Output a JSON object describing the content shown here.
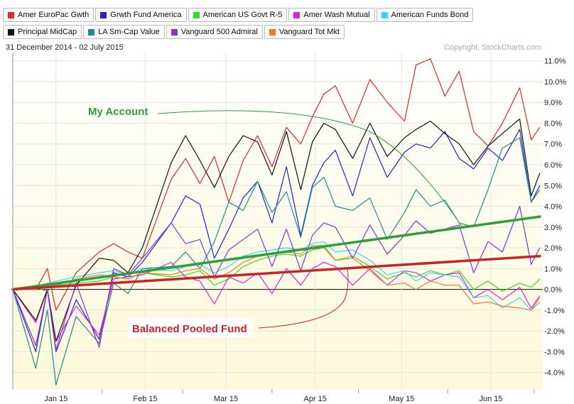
{
  "header": {
    "date_range": "31 December 2014 - 02 July 2015",
    "copyright": "Copyright, StockCharts.com"
  },
  "colors": {
    "background_top": "#ffffff",
    "background_bottom": "#fdf9d9",
    "grid": "#e4e4e4"
  },
  "chart_data": {
    "type": "line",
    "x_tick_labels": [
      "Jan 15",
      "Feb 15",
      "Mar 15",
      "Apr 15",
      "May 15",
      "Jun 15"
    ],
    "x_tick_days": [
      15,
      46,
      74,
      105,
      135,
      166
    ],
    "x_range_days": [
      0,
      184
    ],
    "ylim": [
      -4.8,
      11.4
    ],
    "y_ticks": [
      "11.0%",
      "10.0%",
      "9.0%",
      "8.0%",
      "7.0%",
      "6.0%",
      "5.0%",
      "4.0%",
      "3.0%",
      "2.0%",
      "1.0%",
      "0.0%",
      "-1.0%",
      "-2.0%",
      "-3.0%",
      "-4.0%"
    ],
    "y_tick_values": [
      11,
      10,
      9,
      8,
      7,
      6,
      5,
      4,
      3,
      2,
      1,
      0,
      -1,
      -2,
      -3,
      -4
    ],
    "grid": true,
    "legend_position": "top",
    "series": [
      {
        "name": "Amer EuroPac Gwth",
        "color": "#d62b2b",
        "x": [
          0,
          8,
          12,
          15,
          22,
          30,
          35,
          40,
          45,
          55,
          60,
          65,
          70,
          75,
          80,
          85,
          90,
          95,
          100,
          104,
          108,
          112,
          118,
          124,
          130,
          136,
          140,
          145,
          150,
          155,
          160,
          165,
          170,
          176,
          180,
          183
        ],
        "y": [
          0,
          0,
          1,
          -1,
          0.8,
          1.8,
          2.2,
          1.8,
          1.5,
          5.3,
          6.3,
          5.1,
          6.4,
          4.2,
          6.2,
          7.4,
          5.9,
          7.8,
          7.0,
          8.3,
          9.4,
          9.8,
          8.0,
          10.1,
          9.0,
          8.1,
          10.8,
          11.1,
          9.3,
          10.5,
          7.6,
          6.9,
          8.0,
          9.7,
          7.2,
          7.8
        ]
      },
      {
        "name": "Grwth Fund America",
        "color": "#2a1ec4",
        "x": [
          0,
          8,
          12,
          15,
          22,
          30,
          35,
          40,
          45,
          55,
          60,
          65,
          70,
          75,
          80,
          85,
          90,
          95,
          100,
          104,
          108,
          112,
          118,
          124,
          130,
          136,
          140,
          145,
          150,
          155,
          160,
          165,
          170,
          176,
          180,
          183
        ],
        "y": [
          0,
          -3.0,
          0,
          -3.0,
          -0.5,
          -2.4,
          0.8,
          0.6,
          1.3,
          3.2,
          4.5,
          4.1,
          1.5,
          2.9,
          4.4,
          5.2,
          3.2,
          5.9,
          2.6,
          5.0,
          6.1,
          6.7,
          4.5,
          7.3,
          5.4,
          6.6,
          7.0,
          6.8,
          7.6,
          6.3,
          5.8,
          6.8,
          6.2,
          7.7,
          4.2,
          5.0
        ]
      },
      {
        "name": "American US Govt R-5",
        "color": "#33dd22",
        "x": [
          0,
          8,
          12,
          15,
          22,
          30,
          35,
          40,
          45,
          55,
          60,
          65,
          70,
          75,
          80,
          85,
          90,
          95,
          100,
          104,
          108,
          112,
          118,
          124,
          130,
          136,
          140,
          145,
          150,
          155,
          160,
          165,
          170,
          176,
          180,
          183
        ],
        "y": [
          0,
          0.1,
          -0.1,
          0.2,
          0.3,
          0.4,
          0.6,
          0.5,
          0.8,
          0.6,
          0.7,
          0.9,
          0.2,
          0.5,
          1.1,
          1.4,
          1.6,
          1.7,
          1.6,
          1.9,
          2.0,
          1.4,
          1.6,
          1.1,
          0.5,
          0.8,
          0.6,
          0.9,
          0.7,
          0.9,
          0.0,
          0.4,
          -0.1,
          0.3,
          0.1,
          0.5
        ]
      },
      {
        "name": "Amer Wash Mutual",
        "color": "#dd22dd",
        "x": [
          0,
          8,
          12,
          15,
          22,
          30,
          35,
          40,
          45,
          55,
          60,
          65,
          70,
          75,
          80,
          85,
          90,
          95,
          100,
          104,
          108,
          112,
          118,
          124,
          130,
          136,
          140,
          145,
          150,
          155,
          160,
          165,
          170,
          176,
          180,
          183
        ],
        "y": [
          0,
          -1.6,
          0,
          -2.5,
          -0.8,
          -2.2,
          0.5,
          0.6,
          0.7,
          1.3,
          0.6,
          0.4,
          -0.7,
          0.6,
          0.3,
          0.8,
          -0.2,
          1.0,
          0.2,
          1.0,
          1.3,
          1.1,
          0.2,
          1.0,
          0.2,
          0.9,
          0.8,
          0.4,
          0.7,
          0.8,
          -0.4,
          0.0,
          -0.5,
          0.1,
          -0.9,
          -0.3
        ]
      },
      {
        "name": "American Funds Bond",
        "color": "#33d7ef",
        "x": [
          0,
          8,
          12,
          15,
          22,
          30,
          35,
          40,
          45,
          55,
          60,
          65,
          70,
          75,
          80,
          85,
          90,
          95,
          100,
          104,
          108,
          112,
          118,
          124,
          130,
          136,
          140,
          145,
          150,
          155,
          160,
          165,
          170,
          176,
          180,
          183
        ],
        "y": [
          0,
          0.1,
          0.3,
          0.4,
          0.6,
          0.8,
          0.9,
          0.7,
          1.0,
          0.9,
          1.1,
          1.2,
          0.8,
          1.1,
          1.6,
          1.8,
          1.9,
          2.0,
          1.9,
          2.2,
          2.3,
          1.8,
          1.9,
          1.4,
          0.7,
          0.9,
          0.4,
          0.8,
          0.7,
          0.6,
          -0.4,
          -0.3,
          -0.9,
          -0.4,
          -1.0,
          -0.6
        ]
      },
      {
        "name": "Principal MidCap",
        "color": "#111111",
        "x": [
          0,
          8,
          12,
          15,
          22,
          30,
          35,
          40,
          45,
          55,
          60,
          65,
          70,
          75,
          80,
          85,
          90,
          95,
          100,
          104,
          108,
          112,
          118,
          124,
          130,
          136,
          140,
          145,
          150,
          155,
          160,
          165,
          170,
          176,
          180,
          183
        ],
        "y": [
          0,
          -1.5,
          0,
          -2.5,
          0.2,
          1.5,
          1.4,
          0.8,
          2.0,
          6.1,
          7.4,
          6.2,
          4.9,
          6.4,
          7.4,
          7.1,
          5.5,
          7.6,
          4.8,
          7.1,
          8.0,
          7.7,
          6.3,
          8.0,
          6.4,
          7.3,
          7.7,
          8.1,
          7.5,
          7.0,
          6.0,
          6.9,
          7.5,
          8.2,
          4.5,
          5.6
        ]
      },
      {
        "name": "LA Sm-Cap Value",
        "color": "#208b8b",
        "x": [
          0,
          8,
          12,
          15,
          22,
          30,
          35,
          40,
          45,
          55,
          60,
          65,
          70,
          75,
          80,
          85,
          90,
          95,
          100,
          104,
          108,
          112,
          118,
          124,
          130,
          136,
          140,
          145,
          150,
          155,
          160,
          165,
          170,
          176,
          180,
          183
        ],
        "y": [
          0,
          -3.8,
          -1.0,
          -4.6,
          -1.3,
          -2.6,
          0.3,
          -0.2,
          1.0,
          1.1,
          1.8,
          1.0,
          2.3,
          4.2,
          3.8,
          5.2,
          3.7,
          4.7,
          2.5,
          4.9,
          5.4,
          4.0,
          3.8,
          4.4,
          2.4,
          3.7,
          4.8,
          4.0,
          4.3,
          3.2,
          3.0,
          4.8,
          6.8,
          7.3,
          4.2,
          4.8
        ]
      },
      {
        "name": "Vanguard 500 Admiral",
        "color": "#8833cc",
        "x": [
          0,
          8,
          12,
          15,
          22,
          30,
          35,
          40,
          45,
          55,
          60,
          65,
          70,
          75,
          80,
          85,
          90,
          95,
          100,
          104,
          108,
          112,
          118,
          124,
          130,
          136,
          140,
          145,
          150,
          155,
          160,
          165,
          170,
          176,
          180,
          183
        ],
        "y": [
          0,
          -2.7,
          0,
          -2.9,
          0.3,
          -2.8,
          1.0,
          0.7,
          1.5,
          3.2,
          2.2,
          2.4,
          0.6,
          1.9,
          2.4,
          2.9,
          1.1,
          2.9,
          0.9,
          2.6,
          3.2,
          3.0,
          1.5,
          3.1,
          1.7,
          2.6,
          3.3,
          2.7,
          2.9,
          3.1,
          0.8,
          2.3,
          1.8,
          4.0,
          1.2,
          2.0
        ]
      },
      {
        "name": "Vanguard Tot Mkt",
        "color": "#ee7733",
        "x": [
          0,
          8,
          12,
          15,
          22,
          30,
          35,
          40,
          45,
          55,
          60,
          65,
          70,
          75,
          80,
          85,
          90,
          95,
          100,
          104,
          108,
          112,
          118,
          124,
          130,
          136,
          140,
          145,
          150,
          155,
          160,
          165,
          170,
          176,
          180,
          183
        ],
        "y": [
          0,
          0.0,
          0.2,
          0.2,
          0.5,
          0.7,
          0.6,
          0.5,
          0.8,
          0.7,
          0.9,
          1.0,
          0.5,
          0.8,
          1.3,
          1.6,
          1.7,
          1.8,
          1.7,
          2.1,
          2.1,
          1.4,
          1.5,
          0.9,
          0.2,
          0.3,
          0.0,
          0.4,
          0.2,
          0.2,
          -0.7,
          -0.6,
          -0.8,
          -0.9,
          -1.0,
          -0.4
        ]
      }
    ],
    "overlays": [
      {
        "label": "My Account",
        "color": "#2f9e3f",
        "from": [
          0,
          0
        ],
        "to": [
          183,
          3.5
        ]
      },
      {
        "label": "Balanced Pooled Fund",
        "color": "#c4262a",
        "from": [
          0,
          0
        ],
        "to": [
          183,
          1.6
        ]
      }
    ]
  }
}
